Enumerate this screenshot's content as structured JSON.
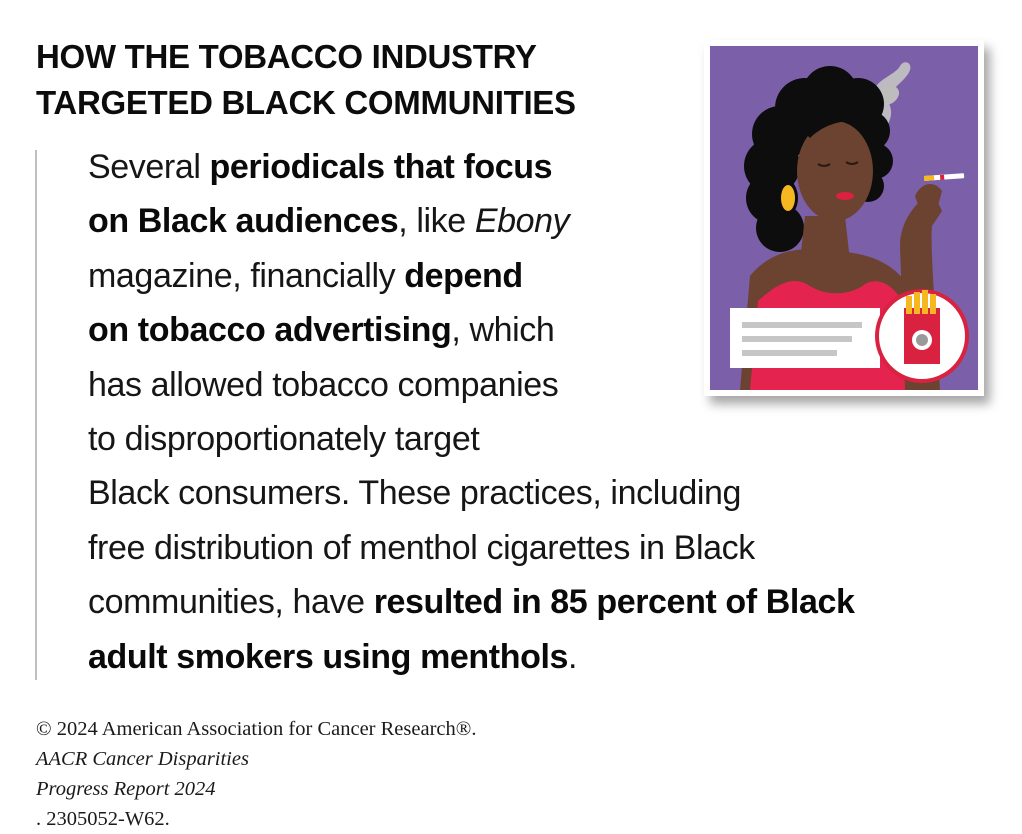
{
  "title": {
    "line1": "HOW THE TOBACCO INDUSTRY",
    "line2": "TARGETED BLACK COMMUNITIES"
  },
  "body": {
    "l1a": "Several ",
    "l1b": "periodicals that focus",
    "l2a": "on Black audiences",
    "l2b": ", like ",
    "l2c": "Ebony",
    "l3a": "magazine, financially ",
    "l3b": "depend",
    "l4a": "on tobacco advertising",
    "l4b": ", which",
    "l5": "has allowed tobacco companies",
    "l6": "to disproportionately target",
    "l7": "Black consumers. These practices, including",
    "l8": "free distribution of menthol cigarettes in Black",
    "l9a": "communities, have ",
    "l9b": "resulted in 85 percent of Black",
    "l10a": "adult smokers using menthols",
    "l10b": "."
  },
  "footer": {
    "line1a": "© 2024 American Association for Cancer Research®. ",
    "line1b": "AACR Cancer Disparities",
    "line2a": "Progress Report 2024",
    "line2b": ". 2305052-W62."
  },
  "colors": {
    "background": "#ffffff",
    "illustration_bg": "#7b5fa8",
    "dress": "#e4234f",
    "skin": "#6b4330",
    "hair": "#0d0d0d",
    "earring": "#f5b820",
    "smoke": "#bdbdbd",
    "divider": "#bfbfbf"
  },
  "illustration": {
    "icon": "woman-smoking-illustration",
    "ad_icon": "cigarette-pack-icon"
  }
}
